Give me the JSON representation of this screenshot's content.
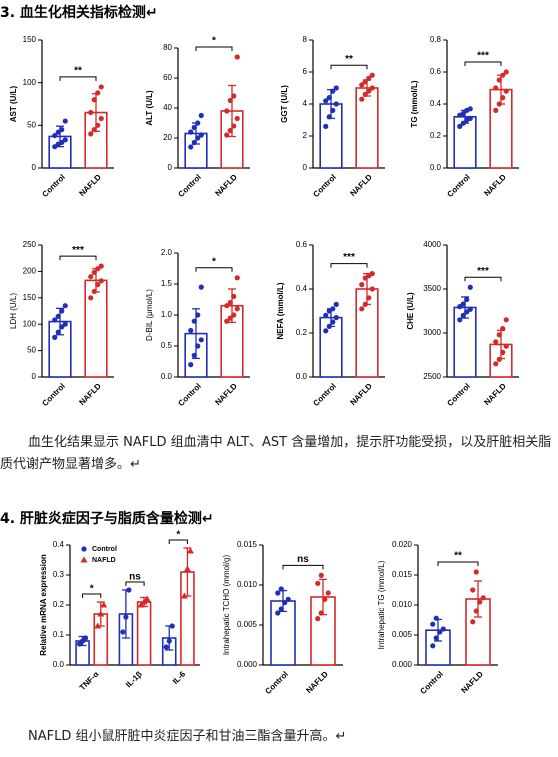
{
  "document": {
    "heading1": "3. 血生化相关指标检测↵",
    "paragraph1": "血生化结果显示 NAFLD 组血清中 ALT、AST 含量增加，提示肝功能受损，以及肝脏相关脂质代谢产物显著增多。↵",
    "heading2": "4. 肝脏炎症因子与脂质含量检测↵",
    "paragraph2": "NAFLD 组小鼠肝脏中炎症因子和甘油三酯含量升高。↵"
  },
  "chart_data": [
    {
      "type": "bar",
      "ylabel": "AST (U/L)",
      "categories": [
        "Control",
        "NAFLD"
      ],
      "colors": [
        "#1f2fb8",
        "#d42a2a"
      ],
      "values": [
        37,
        65
      ],
      "errors": [
        12,
        22
      ],
      "points": [
        [
          25,
          28,
          30,
          33,
          38,
          42,
          45,
          55
        ],
        [
          40,
          45,
          50,
          58,
          65,
          80,
          88,
          95
        ]
      ],
      "ylim": [
        0,
        150
      ],
      "yticks": [
        0,
        50,
        100,
        150
      ],
      "significance": "**"
    },
    {
      "type": "bar",
      "ylabel": "ALT (U/L)",
      "categories": [
        "Control",
        "NAFLD"
      ],
      "colors": [
        "#1f2fb8",
        "#d42a2a"
      ],
      "values": [
        23,
        38
      ],
      "errors": [
        7,
        17
      ],
      "points": [
        [
          14,
          17,
          20,
          22,
          24,
          27,
          30,
          35
        ],
        [
          22,
          25,
          28,
          33,
          38,
          45,
          48,
          74
        ]
      ],
      "ylim": [
        0,
        80
      ],
      "yticks": [
        0,
        20,
        40,
        60,
        80
      ],
      "significance": "*"
    },
    {
      "type": "bar",
      "ylabel": "GGT (U/L)",
      "categories": [
        "Control",
        "NAFLD"
      ],
      "colors": [
        "#1f2fb8",
        "#d42a2a"
      ],
      "values": [
        4.0,
        5.0
      ],
      "errors": [
        0.9,
        0.5
      ],
      "points": [
        [
          2.6,
          3.2,
          3.6,
          4.0,
          4.2,
          4.4,
          4.8,
          5.0
        ],
        [
          4.3,
          4.6,
          4.8,
          5.0,
          5.2,
          5.4,
          5.6,
          5.8
        ]
      ],
      "ylim": [
        0,
        8
      ],
      "yticks": [
        0,
        2,
        4,
        6,
        8
      ],
      "significance": "**"
    },
    {
      "type": "bar",
      "ylabel": "TG (mmol/L)",
      "categories": [
        "Control",
        "NAFLD"
      ],
      "colors": [
        "#1f2fb8",
        "#d42a2a"
      ],
      "values": [
        0.32,
        0.49
      ],
      "errors": [
        0.04,
        0.09
      ],
      "points": [
        [
          0.26,
          0.28,
          0.3,
          0.31,
          0.33,
          0.34,
          0.36,
          0.37
        ],
        [
          0.36,
          0.4,
          0.44,
          0.48,
          0.5,
          0.55,
          0.58,
          0.6
        ]
      ],
      "ylim": [
        0,
        0.8
      ],
      "yticks": [
        {
          "value": 0,
          "label": "0.0"
        },
        0.2,
        0.4,
        0.6,
        0.8
      ],
      "significance": "***"
    },
    {
      "type": "bar",
      "ylabel": "LDH (U/L)",
      "categories": [
        "Control",
        "NAFLD"
      ],
      "colors": [
        "#1f2fb8",
        "#d42a2a"
      ],
      "values": [
        105,
        183
      ],
      "errors": [
        25,
        22
      ],
      "points": [
        [
          75,
          85,
          95,
          100,
          108,
          115,
          125,
          135
        ],
        [
          150,
          162,
          175,
          182,
          190,
          198,
          205,
          210
        ]
      ],
      "ylim": [
        0,
        250
      ],
      "yticks": [
        0,
        50,
        100,
        150,
        200,
        250
      ],
      "significance": "***"
    },
    {
      "type": "bar",
      "ylabel": "D-BIL (μmol/L)",
      "categories": [
        "Control",
        "NAFLD"
      ],
      "colors": [
        "#1f2fb8",
        "#d42a2a"
      ],
      "values": [
        0.7,
        1.15
      ],
      "errors": [
        0.4,
        0.27
      ],
      "points": [
        [
          0.2,
          0.35,
          0.5,
          0.6,
          0.75,
          0.9,
          1.0,
          1.45
        ],
        [
          0.9,
          0.95,
          1.0,
          1.1,
          1.15,
          1.2,
          1.3,
          1.6
        ]
      ],
      "ylim": [
        0,
        2.0
      ],
      "yticks": [
        {
          "value": 0,
          "label": "0.0"
        },
        0.5,
        {
          "value": 1,
          "label": "1.0"
        },
        1.5,
        {
          "value": 2,
          "label": "2.0"
        }
      ],
      "significance": "*"
    },
    {
      "type": "bar",
      "ylabel": "NEFA (mmol/L)",
      "categories": [
        "Control",
        "NAFLD"
      ],
      "colors": [
        "#1f2fb8",
        "#d42a2a"
      ],
      "values": [
        0.27,
        0.4
      ],
      "errors": [
        0.04,
        0.07
      ],
      "points": [
        [
          0.21,
          0.23,
          0.25,
          0.27,
          0.28,
          0.3,
          0.31,
          0.33
        ],
        [
          0.31,
          0.33,
          0.36,
          0.4,
          0.42,
          0.45,
          0.46,
          0.47
        ]
      ],
      "ylim": [
        0,
        0.6
      ],
      "yticks": [
        {
          "value": 0,
          "label": "0.0"
        },
        0.2,
        0.4,
        0.6
      ],
      "significance": "***"
    },
    {
      "type": "bar",
      "ylabel": "CHE (U/L)",
      "categories": [
        "Control",
        "NAFLD"
      ],
      "colors": [
        "#1f2fb8",
        "#d42a2a"
      ],
      "values": [
        3290,
        2870
      ],
      "errors": [
        120,
        160
      ],
      "points": [
        [
          3150,
          3200,
          3240,
          3270,
          3300,
          3330,
          3380,
          3520
        ],
        [
          2650,
          2700,
          2780,
          2850,
          2900,
          2980,
          3050,
          3150
        ]
      ],
      "ylim": [
        2500,
        4000
      ],
      "yticks": [
        2500,
        3000,
        3500,
        4000
      ],
      "significance": "***"
    },
    {
      "type": "grouped_bar",
      "ylabel": "Relative mRNA expression",
      "categories": [
        "TNF-α",
        "IL-1β",
        "IL-6"
      ],
      "series": [
        {
          "name": "Control",
          "color": "#1f2fb8",
          "marker": "circle",
          "values": [
            0.08,
            0.17,
            0.09
          ],
          "errors": [
            0.015,
            0.08,
            0.04
          ],
          "points": [
            [
              0.07,
              0.08,
              0.09
            ],
            [
              0.11,
              0.16,
              0.25
            ],
            [
              0.06,
              0.08,
              0.13
            ]
          ]
        },
        {
          "name": "NAFLD",
          "color": "#d42a2a",
          "marker": "triangle",
          "values": [
            0.17,
            0.21,
            0.31
          ],
          "errors": [
            0.04,
            0.015,
            0.08
          ],
          "points": [
            [
              0.13,
              0.17,
              0.2
            ],
            [
              0.2,
              0.21,
              0.22
            ],
            [
              0.23,
              0.32,
              0.38
            ]
          ]
        }
      ],
      "ylim": [
        0,
        0.4
      ],
      "yticks": [
        {
          "value": 0,
          "label": "0.0"
        },
        0.1,
        0.2,
        0.3,
        0.4
      ],
      "significance": [
        "*",
        "ns",
        "*"
      ],
      "legend": "upper left"
    },
    {
      "type": "bar",
      "ylabel": "Intrahepatic TCHO (mmol/g)",
      "categories": [
        "Control",
        "NAFLD"
      ],
      "colors": [
        "#1f2fb8",
        "#d42a2a"
      ],
      "values": [
        0.008,
        0.0085
      ],
      "errors": [
        0.0013,
        0.0022
      ],
      "points": [
        [
          0.0065,
          0.007,
          0.0078,
          0.0082,
          0.009,
          0.0095
        ],
        [
          0.0058,
          0.0065,
          0.0082,
          0.009,
          0.0102,
          0.0112
        ]
      ],
      "ylim": [
        0,
        0.015
      ],
      "yticks": [
        {
          "value": 0,
          "label": "0.000"
        },
        0.005,
        {
          "value": 0.01,
          "label": "0.010"
        },
        0.015
      ],
      "significance": "ns"
    },
    {
      "type": "bar",
      "ylabel": "Intrahepatic TG (mmol/L)",
      "categories": [
        "Control",
        "NAFLD"
      ],
      "colors": [
        "#1f2fb8",
        "#d42a2a"
      ],
      "values": [
        0.0058,
        0.011
      ],
      "errors": [
        0.0018,
        0.003
      ],
      "points": [
        [
          0.0032,
          0.0045,
          0.0055,
          0.006,
          0.0068,
          0.0078
        ],
        [
          0.0072,
          0.009,
          0.0105,
          0.0112,
          0.0125,
          0.0155
        ]
      ],
      "ylim": [
        0,
        0.02
      ],
      "yticks": [
        {
          "value": 0,
          "label": "0.000"
        },
        0.005,
        {
          "value": 0.01,
          "label": "0.010"
        },
        0.015,
        {
          "value": 0.02,
          "label": "0.020"
        }
      ],
      "significance": "**"
    }
  ]
}
